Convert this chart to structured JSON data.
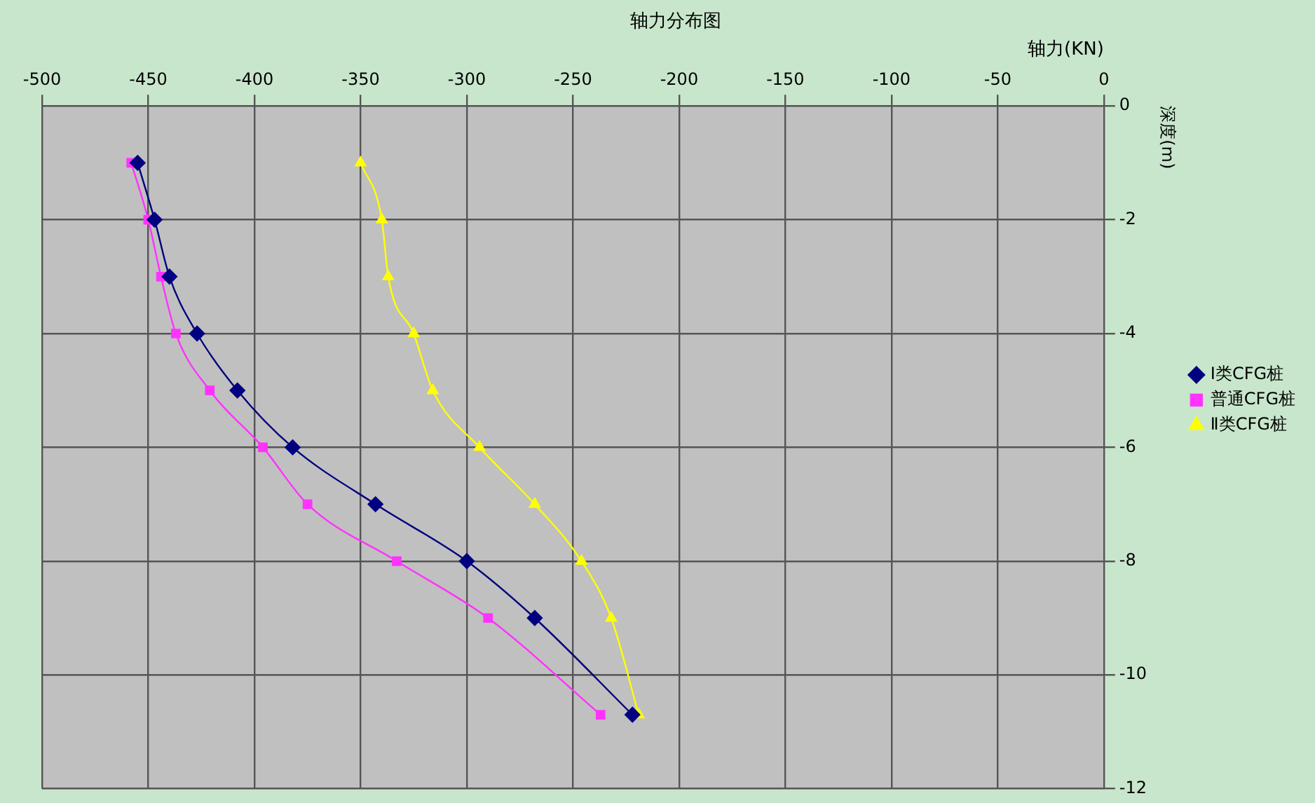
{
  "chart_data": {
    "type": "line",
    "title": "轴力分布图",
    "xlabel": "轴力(KN)",
    "ylabel": "深度(m)",
    "xlim": [
      -500,
      0
    ],
    "xticks": [
      -500,
      -450,
      -400,
      -350,
      -300,
      -250,
      -200,
      -150,
      -100,
      -50,
      0
    ],
    "ylim": [
      -12,
      0
    ],
    "yticks": [
      -12,
      -10,
      -8,
      -6,
      -4,
      -2,
      0
    ],
    "grid": true,
    "legend": "right",
    "line_style": "solid",
    "series": [
      {
        "name": "I类CFG桩",
        "color": "#000080",
        "marker": "diamond",
        "x": [
          -455,
          -447,
          -440,
          -427,
          -408,
          -382,
          -343,
          -300,
          -268,
          -222
        ],
        "values": [
          -1,
          -2,
          -3,
          -4,
          -5,
          -6,
          -7,
          -8,
          -9,
          -10.7
        ]
      },
      {
        "name": "普通CFG桩",
        "color": "#ff33ff",
        "marker": "square",
        "x": [
          -458,
          -450,
          -444,
          -437,
          -421,
          -396,
          -375,
          -333,
          -290,
          -237
        ],
        "values": [
          -1,
          -2,
          -3,
          -4,
          -5,
          -6,
          -7,
          -8,
          -9,
          -10.7
        ]
      },
      {
        "name": "Ⅱ类CFG桩",
        "color": "#ffff00",
        "marker": "triangle",
        "x": [
          -350,
          -340,
          -337,
          -325,
          -316,
          -294,
          -268,
          -246,
          -232,
          -219
        ],
        "values": [
          -1,
          -2,
          -3,
          -4,
          -5,
          -6,
          -7,
          -8,
          -9,
          -10.7
        ]
      }
    ]
  }
}
